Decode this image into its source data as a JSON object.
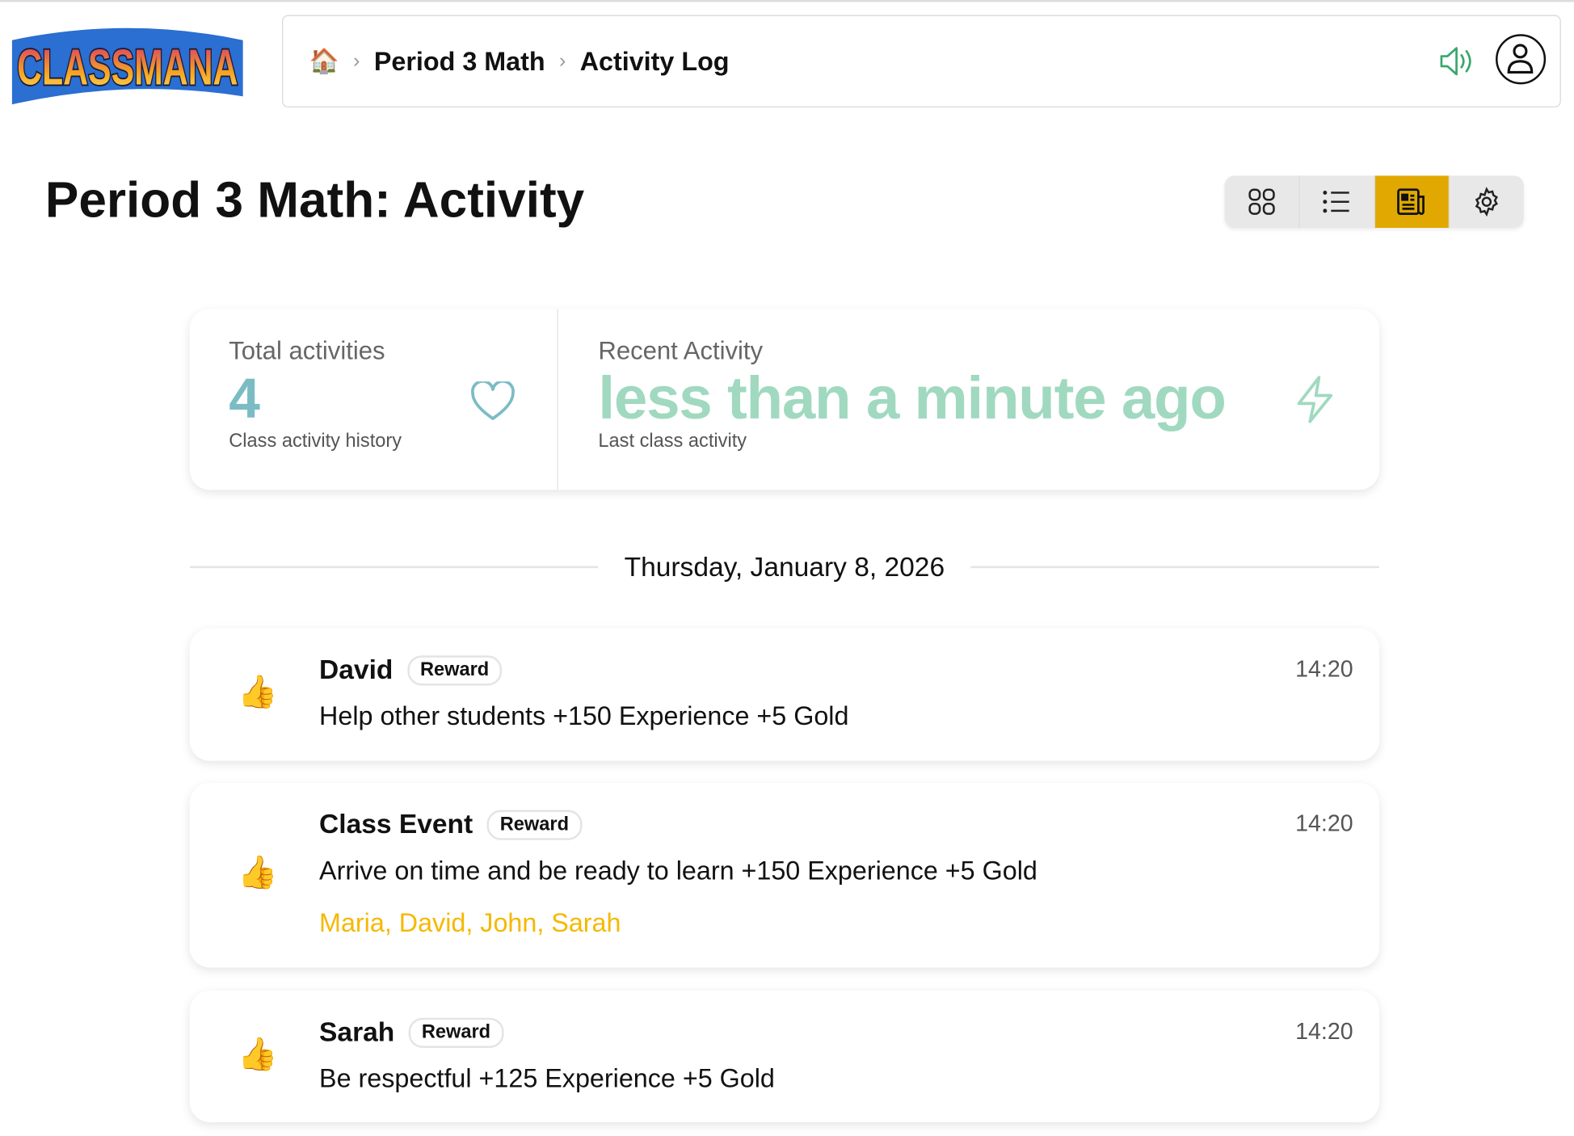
{
  "logo": {
    "text": "CLASSMANA"
  },
  "header": {
    "breadcrumb": [
      {
        "icon": "home-icon"
      },
      {
        "label": "Period 3 Math"
      },
      {
        "label": "Activity Log"
      }
    ],
    "icons": [
      "speaker-icon",
      "user-icon"
    ],
    "accent_color": "#3aa76d"
  },
  "page": {
    "title": "Period 3 Math: Activity",
    "view_toggle": [
      "grid-view",
      "list-view",
      "activity-view",
      "settings"
    ],
    "active_view": "activity-view",
    "active_color": "#e0a800"
  },
  "stats": {
    "total": {
      "label": "Total activities",
      "value": "4",
      "sub": "Class activity history",
      "icon": "heart-icon",
      "color": "#7bbcc4"
    },
    "recent": {
      "label": "Recent Activity",
      "value": "less than a minute ago",
      "sub": "Last class activity",
      "icon": "lightning-icon",
      "color": "#a0d9bf"
    }
  },
  "date": "Thursday, January 8, 2026",
  "activities": [
    {
      "name": "David",
      "badge": "Reward",
      "description": "Help other students +150 Experience +5 Gold",
      "time": "14:20",
      "icon": "thumbs-up-icon"
    },
    {
      "name": "Class Event",
      "badge": "Reward",
      "description": "Arrive on time and be ready to learn +150 Experience +5 Gold",
      "students": "Maria, David, John, Sarah",
      "time": "14:20",
      "icon": "thumbs-up-icon"
    },
    {
      "name": "Sarah",
      "badge": "Reward",
      "description": "Be respectful +125 Experience +5 Gold",
      "time": "14:20",
      "icon": "thumbs-up-icon"
    }
  ]
}
